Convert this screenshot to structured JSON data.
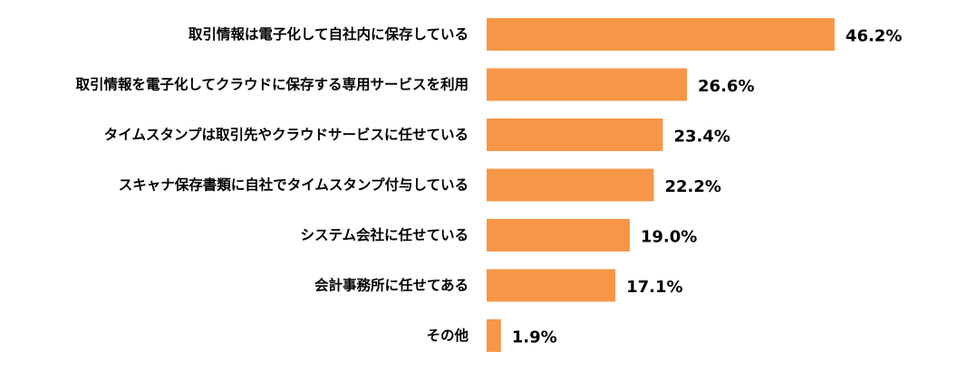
{
  "chart_data": {
    "type": "bar",
    "orientation": "horizontal",
    "categories": [
      "取引情報は電子化して自社内に保存している",
      "取引情報を電子化してクラウドに保存する専用サービスを利用",
      "タイムスタンプは取引先やクラウドサービスに任せている",
      "スキャナ保存書類に自社でタイムスタンプ付与している",
      "システム会社に任せている",
      "会計事務所に任せてある",
      "その他"
    ],
    "values": [
      46.2,
      26.6,
      23.4,
      22.2,
      19.0,
      17.1,
      1.9
    ],
    "value_labels": [
      "46.2%",
      "26.6%",
      "23.4%",
      "22.2%",
      "19.0%",
      "17.1%",
      "1.9%"
    ],
    "unit": "%",
    "xlim": [
      0,
      50
    ],
    "grid": false,
    "legend": "none",
    "bar_color": "#F79646"
  }
}
